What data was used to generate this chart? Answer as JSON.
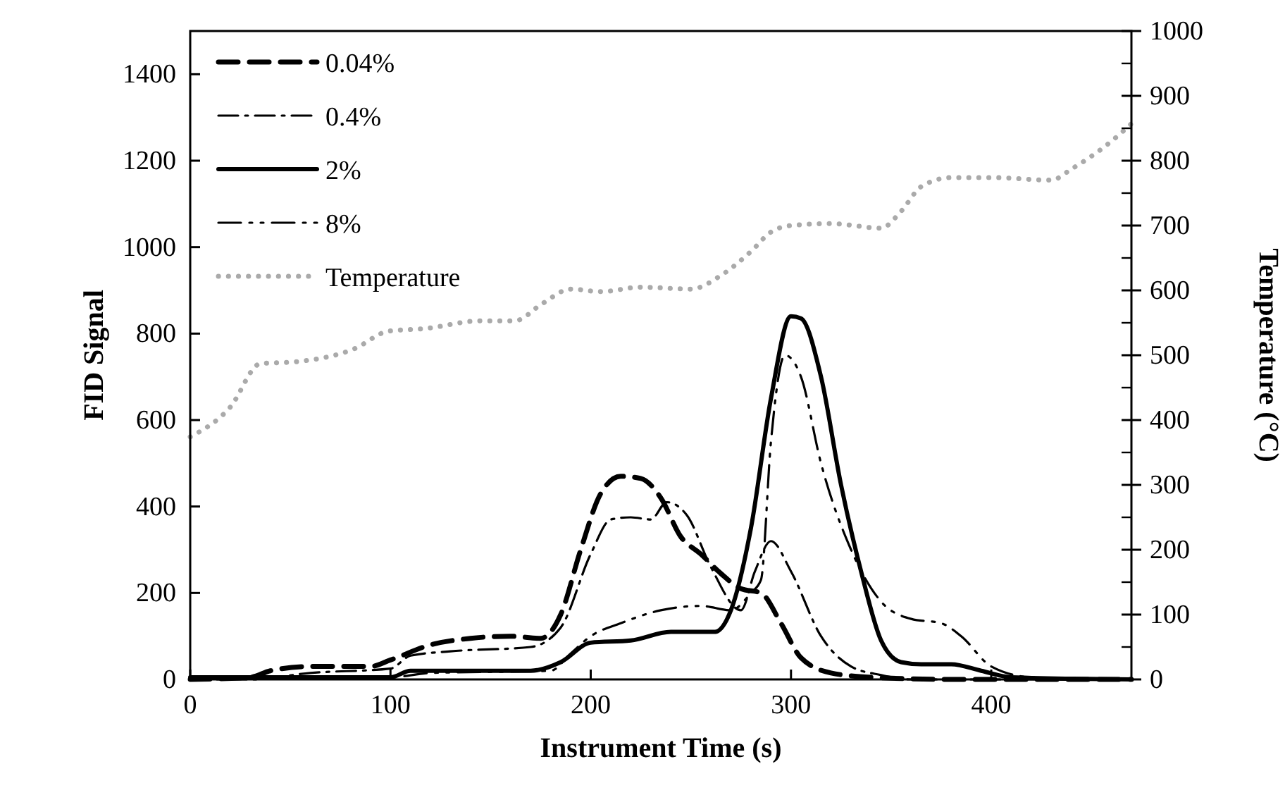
{
  "chart_data": {
    "type": "line",
    "xlabel": "Instrument Time (s)",
    "ylabel": "FID Signal",
    "y2label": "Temperature (°C)",
    "xlim": [
      0,
      470
    ],
    "xticks": [
      0,
      100,
      200,
      300,
      400
    ],
    "ylim": [
      0,
      1500
    ],
    "yticks": [
      0,
      200,
      400,
      600,
      800,
      1000,
      1200,
      1400
    ],
    "y2lim": [
      0,
      1000
    ],
    "y2ticks": [
      0,
      100,
      200,
      300,
      400,
      500,
      600,
      700,
      800,
      900,
      1000
    ],
    "legend": "top left",
    "grid": false,
    "series": [
      {
        "name": "0.04%",
        "color": "#000000",
        "line_style": "dashed",
        "x": [
          0,
          30,
          40,
          60,
          90,
          100,
          120,
          140,
          160,
          175,
          185,
          195,
          205,
          215,
          225,
          235,
          245,
          255,
          265,
          275,
          285,
          295,
          305,
          320,
          340,
          380,
          470
        ],
        "values": [
          0,
          5,
          20,
          30,
          30,
          45,
          80,
          95,
          100,
          95,
          150,
          300,
          430,
          470,
          465,
          420,
          330,
          290,
          245,
          210,
          200,
          130,
          50,
          15,
          5,
          0,
          0
        ]
      },
      {
        "name": "0.4%",
        "color": "#000000",
        "line_style": "dashdot",
        "x": [
          0,
          30,
          60,
          100,
          110,
          130,
          170,
          185,
          200,
          210,
          220,
          230,
          238,
          248,
          260,
          275,
          282,
          290,
          300,
          315,
          330,
          345,
          360,
          470
        ],
        "values": [
          0,
          0,
          15,
          25,
          55,
          65,
          75,
          120,
          290,
          370,
          375,
          370,
          410,
          380,
          260,
          160,
          250,
          320,
          250,
          100,
          30,
          10,
          0,
          0
        ]
      },
      {
        "name": "2%",
        "color": "#000000",
        "line_style": "solid",
        "x": [
          0,
          100,
          110,
          170,
          185,
          200,
          220,
          240,
          255,
          262,
          270,
          280,
          290,
          300,
          305,
          315,
          325,
          335,
          345,
          355,
          365,
          380,
          395,
          410,
          470
        ],
        "values": [
          5,
          5,
          20,
          20,
          40,
          85,
          90,
          110,
          110,
          110,
          160,
          350,
          650,
          840,
          835,
          700,
          450,
          250,
          90,
          40,
          35,
          35,
          20,
          5,
          0
        ]
      },
      {
        "name": "8%",
        "color": "#000000",
        "line_style": "dashdotdot",
        "x": [
          0,
          100,
          120,
          180,
          190,
          200,
          215,
          235,
          255,
          270,
          280,
          285,
          290,
          297,
          305,
          315,
          330,
          345,
          360,
          375,
          385,
          400,
          420,
          470
        ],
        "values": [
          5,
          5,
          15,
          20,
          60,
          100,
          130,
          160,
          170,
          160,
          200,
          230,
          550,
          750,
          700,
          500,
          300,
          180,
          140,
          130,
          100,
          30,
          5,
          0
        ]
      },
      {
        "name": "Temperature",
        "color": "#aaaaaa",
        "line_style": "dotted",
        "axis": "y2",
        "x": [
          0,
          20,
          35,
          53,
          82,
          99,
          117,
          145,
          162,
          176,
          190,
          205,
          225,
          250,
          265,
          280,
          290,
          300,
          320,
          345,
          355,
          365,
          380,
          400,
          430,
          440,
          460,
          470
        ],
        "values": [
          374,
          420,
          487,
          490,
          510,
          537,
          541,
          553,
          553,
          580,
          602,
          598,
          605,
          602,
          623,
          660,
          690,
          700,
          703,
          696,
          722,
          760,
          774,
          774,
          770,
          787,
          830,
          857
        ]
      }
    ]
  }
}
